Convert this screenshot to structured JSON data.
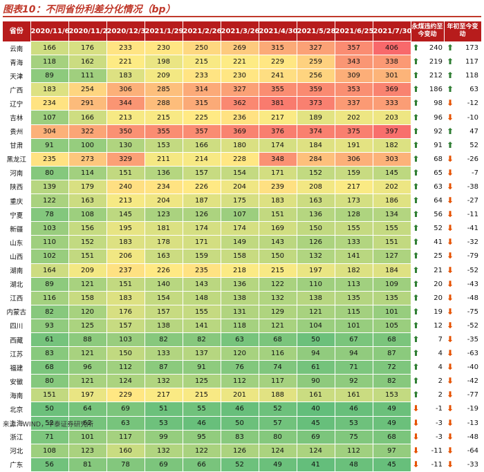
{
  "title": "图表10：不同省份利差分化情况（bp）",
  "source": "来源：WIND，中泰证券研究所",
  "colors": {
    "header": "#b71c1c",
    "up_arrow": "#2e7d32",
    "down_arrow": "#e65100"
  },
  "chart_data": {
    "type": "table",
    "title": "图表10：不同省份利差分化情况（bp）",
    "unit": "bp",
    "color_scale": "high values red, low values green",
    "header_province": "省份",
    "dates": [
      "2020/11/6",
      "2020/11/27",
      "2020/12/31",
      "2021/1/29",
      "2021/2/26",
      "2021/3/26",
      "2021/4/30",
      "2021/5/28",
      "2021/6/25",
      "2021/7/30"
    ],
    "header_change_1": "永煤违约至今变动",
    "header_change_2": "年初至今变动",
    "rows": [
      {
        "province": "云南",
        "values": [
          166,
          176,
          233,
          230,
          250,
          269,
          315,
          327,
          357,
          406
        ],
        "change_1": 240,
        "change_2": 173
      },
      {
        "province": "青海",
        "values": [
          118,
          162,
          221,
          198,
          215,
          221,
          229,
          259,
          343,
          338
        ],
        "change_1": 219,
        "change_2": 117
      },
      {
        "province": "天津",
        "values": [
          89,
          111,
          183,
          209,
          233,
          230,
          241,
          256,
          309,
          301
        ],
        "change_1": 212,
        "change_2": 118
      },
      {
        "province": "广西",
        "values": [
          183,
          254,
          306,
          285,
          314,
          327,
          355,
          359,
          353,
          369
        ],
        "change_1": 186,
        "change_2": 63
      },
      {
        "province": "辽宁",
        "values": [
          234,
          291,
          344,
          288,
          315,
          362,
          381,
          373,
          337,
          333
        ],
        "change_1": 98,
        "change_2": -12
      },
      {
        "province": "吉林",
        "values": [
          107,
          166,
          213,
          215,
          225,
          236,
          217,
          189,
          202,
          203
        ],
        "change_1": 96,
        "change_2": -10
      },
      {
        "province": "贵州",
        "values": [
          304,
          322,
          350,
          355,
          357,
          369,
          376,
          374,
          375,
          397
        ],
        "change_1": 92,
        "change_2": 47
      },
      {
        "province": "甘肃",
        "values": [
          91,
          100,
          130,
          153,
          166,
          180,
          174,
          184,
          191,
          182
        ],
        "change_1": 91,
        "change_2": 52
      },
      {
        "province": "黑龙江",
        "values": [
          235,
          273,
          329,
          211,
          214,
          228,
          348,
          284,
          306,
          303
        ],
        "change_1": 68,
        "change_2": -26
      },
      {
        "province": "河南",
        "values": [
          80,
          114,
          151,
          136,
          157,
          154,
          171,
          152,
          159,
          145
        ],
        "change_1": 65,
        "change_2": -7
      },
      {
        "province": "陕西",
        "values": [
          139,
          179,
          240,
          234,
          226,
          204,
          239,
          208,
          217,
          202
        ],
        "change_1": 63,
        "change_2": -38
      },
      {
        "province": "重庆",
        "values": [
          122,
          163,
          213,
          204,
          187,
          175,
          183,
          163,
          173,
          186
        ],
        "change_1": 64,
        "change_2": -27
      },
      {
        "province": "宁夏",
        "values": [
          78,
          108,
          145,
          123,
          126,
          107,
          151,
          136,
          128,
          134
        ],
        "change_1": 56,
        "change_2": -11
      },
      {
        "province": "新疆",
        "values": [
          103,
          156,
          195,
          181,
          174,
          174,
          169,
          150,
          155,
          155
        ],
        "change_1": 52,
        "change_2": -41
      },
      {
        "province": "山东",
        "values": [
          110,
          152,
          183,
          178,
          171,
          149,
          143,
          126,
          133,
          151
        ],
        "change_1": 41,
        "change_2": -32
      },
      {
        "province": "山西",
        "values": [
          102,
          151,
          206,
          163,
          159,
          158,
          150,
          132,
          141,
          127
        ],
        "change_1": 25,
        "change_2": -79
      },
      {
        "province": "湖南",
        "values": [
          164,
          209,
          237,
          226,
          235,
          218,
          215,
          197,
          182,
          184
        ],
        "change_1": 21,
        "change_2": -52
      },
      {
        "province": "湖北",
        "values": [
          89,
          121,
          151,
          140,
          143,
          136,
          122,
          110,
          113,
          109
        ],
        "change_1": 20,
        "change_2": -43
      },
      {
        "province": "江西",
        "values": [
          116,
          158,
          183,
          154,
          148,
          138,
          132,
          138,
          135,
          135
        ],
        "change_1": 20,
        "change_2": -48
      },
      {
        "province": "内蒙古",
        "values": [
          82,
          120,
          176,
          157,
          155,
          131,
          129,
          121,
          115,
          101
        ],
        "change_1": 19,
        "change_2": -75
      },
      {
        "province": "四川",
        "values": [
          93,
          125,
          157,
          138,
          141,
          118,
          121,
          104,
          101,
          105
        ],
        "change_1": 12,
        "change_2": -52
      },
      {
        "province": "西藏",
        "values": [
          61,
          88,
          103,
          82,
          82,
          63,
          68,
          50,
          67,
          68
        ],
        "change_1": 7,
        "change_2": -35
      },
      {
        "province": "江苏",
        "values": [
          83,
          121,
          150,
          133,
          137,
          120,
          116,
          94,
          94,
          87
        ],
        "change_1": 4,
        "change_2": -63
      },
      {
        "province": "福建",
        "values": [
          68,
          96,
          112,
          87,
          91,
          76,
          74,
          61,
          71,
          72
        ],
        "change_1": 4,
        "change_2": -40
      },
      {
        "province": "安徽",
        "values": [
          80,
          121,
          124,
          132,
          125,
          112,
          117,
          90,
          92,
          82
        ],
        "change_1": 2,
        "change_2": -42
      },
      {
        "province": "海南",
        "values": [
          151,
          197,
          229,
          217,
          215,
          201,
          188,
          161,
          161,
          153
        ],
        "change_1": 2,
        "change_2": -77
      },
      {
        "province": "北京",
        "values": [
          50,
          64,
          69,
          51,
          55,
          46,
          52,
          40,
          46,
          49
        ],
        "change_1": -1,
        "change_2": -19
      },
      {
        "province": "上海",
        "values": [
          52,
          62,
          63,
          53,
          46,
          50,
          57,
          45,
          53,
          49
        ],
        "change_1": -3,
        "change_2": -13
      },
      {
        "province": "浙江",
        "values": [
          71,
          101,
          117,
          99,
          95,
          83,
          80,
          69,
          75,
          68
        ],
        "change_1": -3,
        "change_2": -48
      },
      {
        "province": "河北",
        "values": [
          108,
          123,
          160,
          132,
          122,
          126,
          124,
          124,
          112,
          97
        ],
        "change_1": -11,
        "change_2": -64
      },
      {
        "province": "广东",
        "values": [
          56,
          81,
          78,
          69,
          66,
          52,
          49,
          41,
          48,
          45
        ],
        "change_1": -11,
        "change_2": -33
      }
    ]
  }
}
